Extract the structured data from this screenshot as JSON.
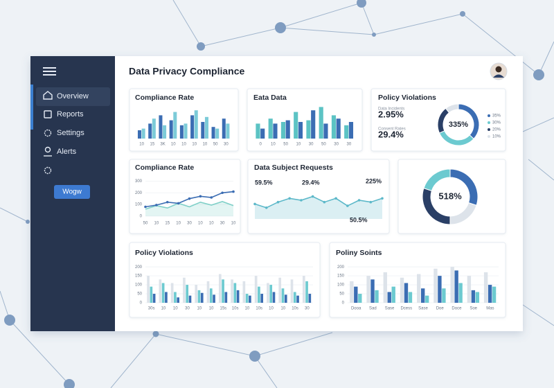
{
  "sidebar": {
    "menu": [
      "Overview",
      "Reports",
      "Settings",
      "Alerts"
    ],
    "button": "Wogw"
  },
  "header": {
    "title": "Data Privacy Compliance"
  },
  "chart_data": [
    {
      "type": "bar",
      "title": "Compliance Rate",
      "categories": [
        "10",
        "15",
        "3K",
        "10",
        "10",
        "10",
        "10",
        "50",
        "30"
      ],
      "series": [
        {
          "color": "#3b6db3",
          "values": [
            25,
            45,
            70,
            55,
            40,
            70,
            50,
            35,
            60
          ]
        },
        {
          "color": "#7ccbd8",
          "values": [
            30,
            60,
            40,
            80,
            45,
            85,
            65,
            30,
            45
          ]
        }
      ],
      "ylim": [
        0,
        100
      ]
    },
    {
      "type": "bar",
      "title": "Eata Data",
      "categories": [
        "0",
        "10",
        "50",
        "10",
        "30",
        "50",
        "30",
        "30"
      ],
      "series": [
        {
          "color": "#5cc3c4",
          "values": [
            45,
            60,
            50,
            80,
            55,
            95,
            70,
            40
          ]
        },
        {
          "color": "#3b6db3",
          "values": [
            30,
            45,
            55,
            50,
            85,
            45,
            60,
            50
          ]
        }
      ],
      "ylim": [
        0,
        100
      ]
    },
    {
      "type": "pie",
      "title": "Policy Violations",
      "stats": [
        "2.95%",
        "29.4%"
      ],
      "stat_labels": [
        "Data Incidents",
        "Consent Rates"
      ],
      "center_label": "335%",
      "values": [
        35,
        30,
        20,
        10
      ],
      "value_labels": [
        "35%",
        "30%",
        "20%",
        "10%"
      ],
      "colors": [
        "#3b6db3",
        "#6ccad0",
        "#2a3f66",
        "#dde3ea"
      ]
    },
    {
      "type": "line",
      "title": "Compliance Rate",
      "categories": [
        "50",
        "10",
        "15",
        "10",
        "30",
        "10",
        "10",
        "30",
        "10"
      ],
      "series": [
        {
          "color": "#7fd0c8",
          "area": true,
          "values": [
            60,
            90,
            70,
            110,
            80,
            120,
            95,
            125,
            90
          ]
        },
        {
          "color": "#3b6db3",
          "markers": true,
          "values": [
            80,
            95,
            120,
            110,
            150,
            170,
            160,
            200,
            210
          ]
        }
      ],
      "ylim": [
        0,
        320
      ],
      "yticks": [
        0,
        100,
        200,
        300
      ],
      "grid": true
    },
    {
      "type": "line",
      "title": "Data Subject Requests",
      "series": [
        {
          "color": "#5cb8c9",
          "area": true,
          "markers": true,
          "values": [
            40,
            30,
            45,
            55,
            50,
            60,
            45,
            55,
            35,
            50,
            45,
            55
          ]
        }
      ],
      "ylim": [
        0,
        100
      ],
      "annotations": [
        "59.5%",
        "29.4%",
        "225%",
        "50.5%"
      ]
    },
    {
      "type": "pie",
      "center_label": "518%",
      "values": [
        30,
        20,
        30,
        20
      ],
      "colors": [
        "#3b6db3",
        "#dde3ea",
        "#2a3f66",
        "#6ccad0"
      ]
    },
    {
      "type": "bar",
      "title": "Policy Violations",
      "categories": [
        "30s",
        "10",
        "10",
        "30",
        "10",
        "10",
        "15s",
        "10s",
        "10",
        "10s",
        "10",
        "10",
        "10s",
        "30"
      ],
      "series": [
        {
          "color": "#dde3ea",
          "values": [
            150,
            130,
            110,
            140,
            100,
            120,
            160,
            130,
            120,
            150,
            110,
            140,
            130,
            150
          ]
        },
        {
          "color": "#6ccad0",
          "values": [
            90,
            110,
            60,
            100,
            70,
            80,
            130,
            110,
            50,
            90,
            100,
            80,
            60,
            120
          ]
        },
        {
          "color": "#3b6db3",
          "values": [
            50,
            60,
            30,
            40,
            55,
            45,
            60,
            70,
            40,
            50,
            60,
            45,
            40,
            50
          ]
        }
      ],
      "ylim": [
        0,
        220
      ],
      "yticks": [
        0,
        50,
        100,
        150,
        200
      ],
      "grid": true
    },
    {
      "type": "bar",
      "title": "Poliny Soints",
      "categories": [
        "Dooa",
        "Sad",
        "Sase",
        "Dcess",
        "Sase",
        "Doe",
        "Doce",
        "Soe",
        "Mas"
      ],
      "series": [
        {
          "color": "#dde3ea",
          "values": [
            120,
            150,
            170,
            140,
            160,
            190,
            200,
            150,
            170
          ]
        },
        {
          "color": "#3b6db3",
          "values": [
            90,
            130,
            60,
            110,
            80,
            150,
            180,
            70,
            100
          ]
        },
        {
          "color": "#6ccad0",
          "values": [
            50,
            70,
            90,
            60,
            40,
            80,
            110,
            60,
            90
          ]
        }
      ],
      "ylim": [
        0,
        220
      ],
      "yticks": [
        0,
        50,
        100,
        150,
        200
      ],
      "grid": true
    }
  ]
}
